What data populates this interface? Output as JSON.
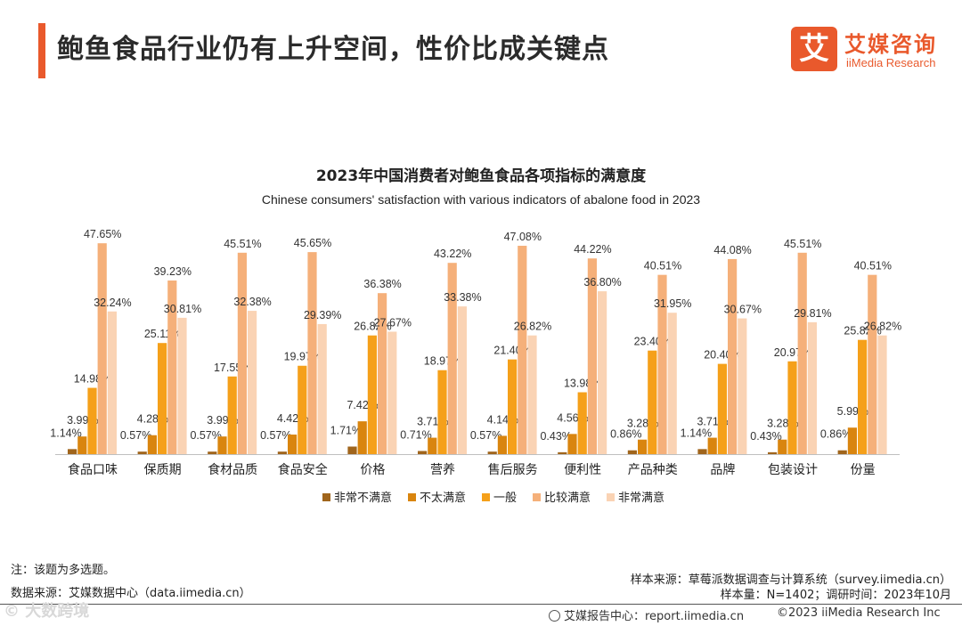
{
  "header": {
    "title": "鲍鱼食品行业仍有上升空间，性价比成关键点",
    "logo_mark": "艾",
    "logo_cn": "艾媒咨询",
    "logo_en": "iiMedia Research"
  },
  "chart_data": {
    "type": "bar",
    "title": "2023年中国消费者对鲍鱼食品各项指标的满意度",
    "subtitle": "Chinese consumers' satisfaction with various indicators of abalone food in 2023",
    "categories": [
      "食品口味",
      "保质期",
      "食材品质",
      "食品安全",
      "价格",
      "营养",
      "售后服务",
      "便利性",
      "产品种类",
      "品牌",
      "包装设计",
      "份量"
    ],
    "series": [
      {
        "name": "非常不满意",
        "color": "#a0651c",
        "values": [
          1.14,
          0.57,
          0.57,
          0.57,
          1.71,
          0.71,
          0.57,
          0.43,
          0.86,
          1.14,
          0.43,
          0.86
        ]
      },
      {
        "name": "不太满意",
        "color": "#d9850f",
        "values": [
          3.99,
          4.28,
          3.99,
          4.42,
          7.42,
          3.71,
          4.14,
          4.56,
          3.28,
          3.71,
          3.28,
          5.99
        ]
      },
      {
        "name": "一般",
        "color": "#f5a01a",
        "values": [
          14.98,
          25.11,
          17.55,
          19.97,
          26.82,
          18.97,
          21.4,
          13.98,
          23.4,
          20.4,
          20.97,
          25.82
        ]
      },
      {
        "name": "比较满意",
        "color": "#f5b07a",
        "values": [
          47.65,
          39.23,
          45.51,
          45.65,
          36.38,
          43.22,
          47.08,
          44.22,
          40.51,
          44.08,
          45.51,
          40.51
        ]
      },
      {
        "name": "非常满意",
        "color": "#fad3b4",
        "values": [
          32.24,
          30.81,
          32.38,
          29.39,
          27.67,
          33.38,
          26.82,
          36.8,
          31.95,
          30.67,
          29.81,
          26.82
        ]
      }
    ],
    "value_suffix": "%",
    "ylim": [
      0,
      50
    ],
    "legend": "bottom-center"
  },
  "notes": {
    "note": "注：该题为多选题。",
    "data_source": "数据来源：艾媒数据中心（data.iimedia.cn）",
    "sample_source": "样本来源：草莓派数据调查与计算系统（survey.iimedia.cn）",
    "sample_size": "样本量：N=1402；调研时间：2023年10月"
  },
  "footer": {
    "report_center": "艾媒报告中心：report.iimedia.cn",
    "copyright": "©2023  iiMedia Research  Inc",
    "watermark": "© 大数跨境"
  }
}
